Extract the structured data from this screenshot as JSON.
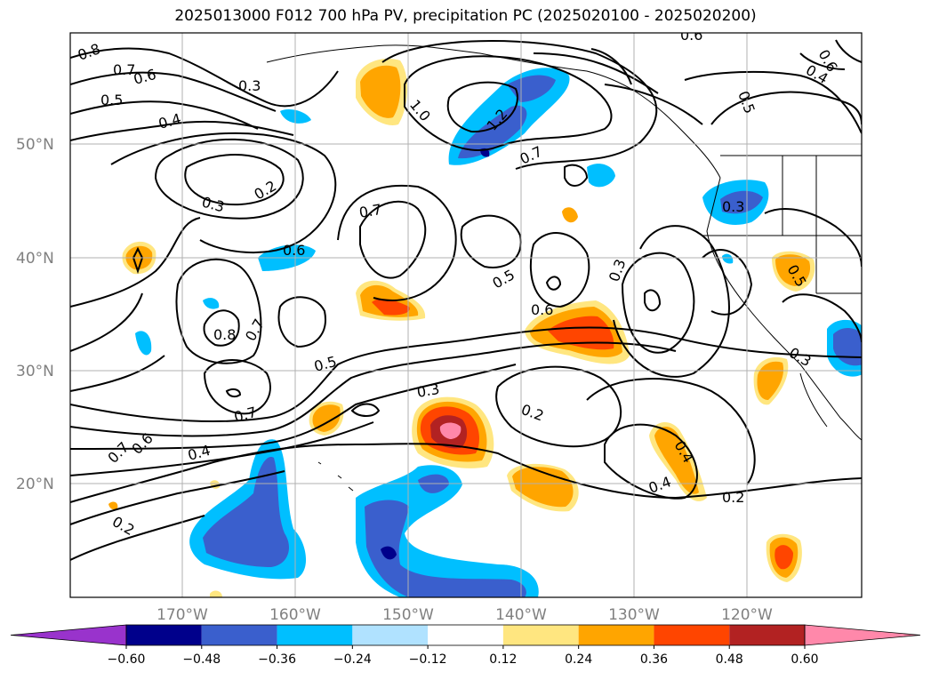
{
  "title": "2025013000 F012 700 hPa PV, precipitation PC (2025020100 - 2025020200)",
  "lat_labels": [
    "50°N",
    "40°N",
    "30°N",
    "20°N"
  ],
  "lon_labels": [
    "170°W",
    "160°W",
    "150°W",
    "140°W",
    "130°W",
    "120°W"
  ],
  "colorbar": {
    "labels": [
      "−0.60",
      "−0.48",
      "−0.36",
      "−0.24",
      "−0.12",
      "0.12",
      "0.24",
      "0.36",
      "0.48",
      "0.60"
    ],
    "colors": [
      "#9933cc",
      "#00008b",
      "#3a5fcd",
      "#00bfff",
      "#b0e2ff",
      "#ffffff",
      "#ffe680",
      "#ffa500",
      "#ff4500",
      "#b22222",
      "#ff88aa"
    ]
  },
  "contour_labels": [
    "0.8",
    "0.7",
    "0.6",
    "0.5",
    "0.4",
    "0.3",
    "0.2",
    "1.0",
    "1.2",
    "0.3",
    "0.7",
    "0.7",
    "0.6",
    "0.5",
    "0.6",
    "0.3",
    "0.8",
    "0.7",
    "0.5",
    "0.3",
    "0.2",
    "0.7",
    "0.4",
    "0.7",
    "0.6",
    "0.2",
    "0.4",
    "0.4",
    "0.2",
    "0.3",
    "0.5",
    "0.4",
    "0.6",
    "0.3",
    "0.5",
    "0.6"
  ]
}
